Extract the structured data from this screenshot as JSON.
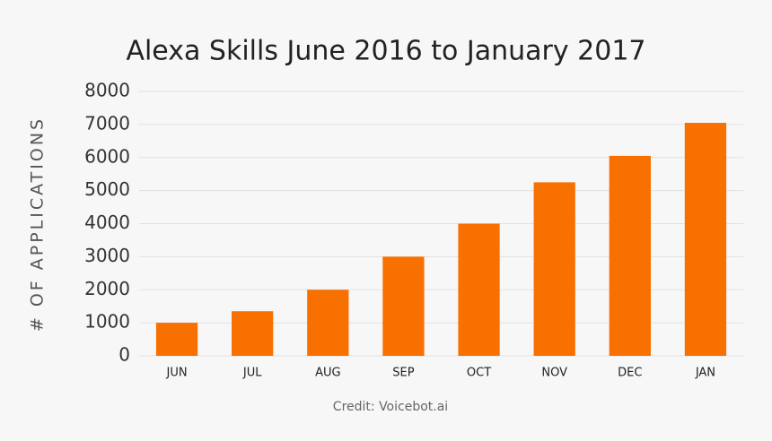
{
  "chart_data": {
    "type": "bar",
    "title": "Alexa Skills June 2016 to January 2017",
    "y_label": "# OF APPLICATIONS",
    "credit": "Credit: Voicebot.ai",
    "categories": [
      "JUN",
      "JUL",
      "AUG",
      "SEP",
      "OCT",
      "NOV",
      "DEC",
      "JAN"
    ],
    "values": [
      1000,
      1350,
      2000,
      3000,
      4000,
      5250,
      6050,
      7050
    ],
    "color": "#f87000",
    "ylim": [
      0,
      8000
    ],
    "yticks": [
      0,
      1000,
      2000,
      3000,
      4000,
      5000,
      6000,
      7000,
      8000
    ],
    "grid": true
  }
}
